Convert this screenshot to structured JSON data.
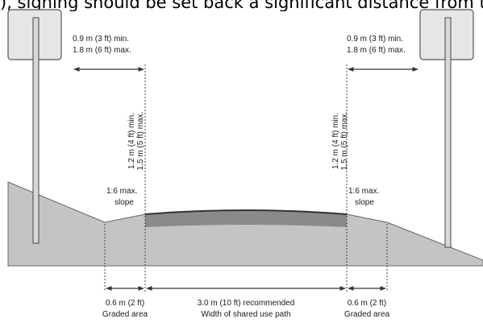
{
  "heading": "), signing should be set back a significant distance from the edge of the path.",
  "sign_clearance": {
    "min": "0.9 m (3 ft) min.",
    "max": "1.8 m (6 ft) max."
  },
  "vertical_clearance": {
    "min": "1.2 m (4 ft) min.",
    "max": "1.5 m (5 ft) max."
  },
  "slope_label": {
    "line1": "1:6 max.",
    "line2": "slope"
  },
  "graded_area": {
    "width": "0.6 m (2 ft)",
    "label": "Graded area"
  },
  "path_width": {
    "value": "3.0 m (10 ft) recommended",
    "label": "Width of shared use path"
  },
  "colors": {
    "ground": "#c4c4c4",
    "path_surface": "#8a8a8a",
    "sign_panel": "#e6e6e6",
    "outline": "#555555"
  }
}
